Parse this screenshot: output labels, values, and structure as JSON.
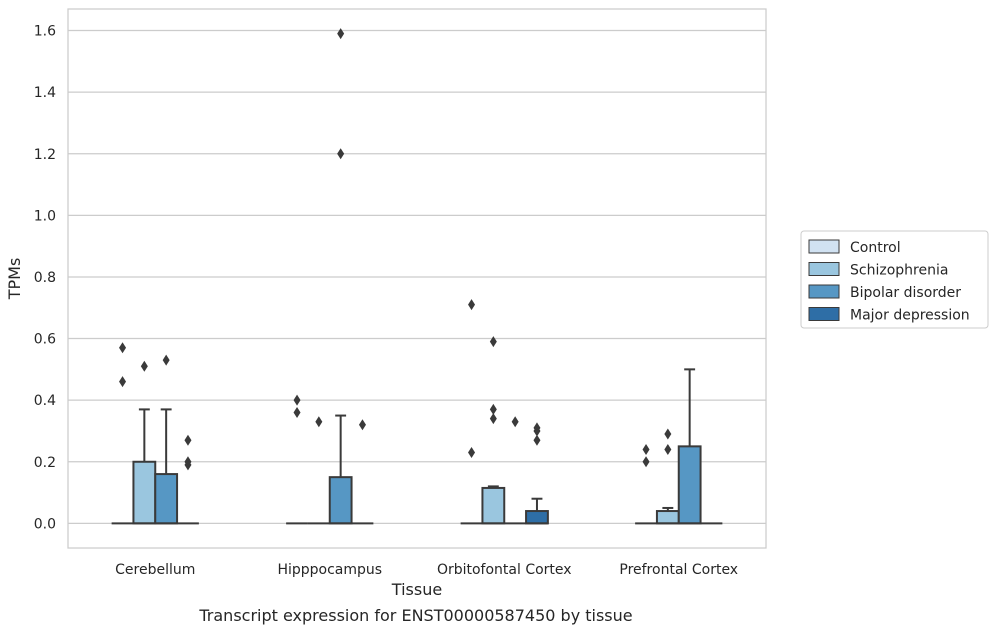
{
  "caption": "Transcript expression for ENST00000587450 by tissue",
  "chart_data": {
    "type": "box",
    "xlabel": "Tissue",
    "ylabel": "TPMs",
    "ylim": [
      -0.08,
      1.67
    ],
    "yticks": [
      0.0,
      0.2,
      0.4,
      0.6,
      0.8,
      1.0,
      1.2,
      1.4,
      1.6
    ],
    "ytick_labels": [
      "0.0",
      "0.2",
      "0.4",
      "0.6",
      "0.8",
      "1.0",
      "1.2",
      "1.4",
      "1.6"
    ],
    "grid": true,
    "legend_position": "right",
    "categories": [
      "Cerebellum",
      "Hipppocampus",
      "Orbitofontal Cortex",
      "Prefrontal Cortex"
    ],
    "series": [
      {
        "name": "Control",
        "color": "#d1e2f2",
        "boxes": [
          {
            "q1": 0,
            "median": 0,
            "q3": 0,
            "whisker_low": 0,
            "whisker_high": 0,
            "outliers": [
              0.46,
              0.57
            ]
          },
          {
            "q1": 0,
            "median": 0,
            "q3": 0,
            "whisker_low": 0,
            "whisker_high": 0,
            "outliers": [
              0.36,
              0.4
            ]
          },
          {
            "q1": 0,
            "median": 0,
            "q3": 0,
            "whisker_low": 0,
            "whisker_high": 0,
            "outliers": [
              0.23,
              0.71
            ]
          },
          {
            "q1": 0,
            "median": 0,
            "q3": 0,
            "whisker_low": 0,
            "whisker_high": 0,
            "outliers": [
              0.2,
              0.24
            ]
          }
        ]
      },
      {
        "name": "Schizophrenia",
        "color": "#9ac6df",
        "boxes": [
          {
            "q1": 0,
            "median": 0,
            "q3": 0.2,
            "whisker_low": 0,
            "whisker_high": 0.37,
            "outliers": [
              0.51
            ]
          },
          {
            "q1": 0,
            "median": 0,
            "q3": 0,
            "whisker_low": 0,
            "whisker_high": 0,
            "outliers": [
              0.33
            ]
          },
          {
            "q1": 0,
            "median": 0,
            "q3": 0.115,
            "whisker_low": 0,
            "whisker_high": 0.12,
            "outliers": [
              0.34,
              0.37,
              0.59
            ]
          },
          {
            "q1": 0,
            "median": 0,
            "q3": 0.04,
            "whisker_low": 0,
            "whisker_high": 0.05,
            "outliers": [
              0.24,
              0.29
            ]
          }
        ]
      },
      {
        "name": "Bipolar disorder",
        "color": "#5697c4",
        "boxes": [
          {
            "q1": 0,
            "median": 0,
            "q3": 0.16,
            "whisker_low": 0,
            "whisker_high": 0.37,
            "outliers": [
              0.53
            ]
          },
          {
            "q1": 0,
            "median": 0,
            "q3": 0.15,
            "whisker_low": 0,
            "whisker_high": 0.35,
            "outliers": [
              1.2,
              1.59
            ]
          },
          {
            "q1": 0,
            "median": 0,
            "q3": 0,
            "whisker_low": 0,
            "whisker_high": 0,
            "outliers": [
              0.33
            ]
          },
          {
            "q1": 0,
            "median": 0,
            "q3": 0.25,
            "whisker_low": 0,
            "whisker_high": 0.5,
            "outliers": []
          }
        ]
      },
      {
        "name": "Major depression",
        "color": "#2e6ea6",
        "boxes": [
          {
            "q1": 0,
            "median": 0,
            "q3": 0,
            "whisker_low": 0,
            "whisker_high": 0,
            "outliers": [
              0.19,
              0.2,
              0.27
            ]
          },
          {
            "q1": 0,
            "median": 0,
            "q3": 0,
            "whisker_low": 0,
            "whisker_high": 0,
            "outliers": [
              0.32
            ]
          },
          {
            "q1": 0,
            "median": 0,
            "q3": 0.04,
            "whisker_low": 0,
            "whisker_high": 0.08,
            "outliers": [
              0.27,
              0.3,
              0.31
            ]
          },
          {
            "q1": 0,
            "median": 0,
            "q3": 0,
            "whisker_low": 0,
            "whisker_high": 0,
            "outliers": []
          }
        ]
      }
    ]
  }
}
